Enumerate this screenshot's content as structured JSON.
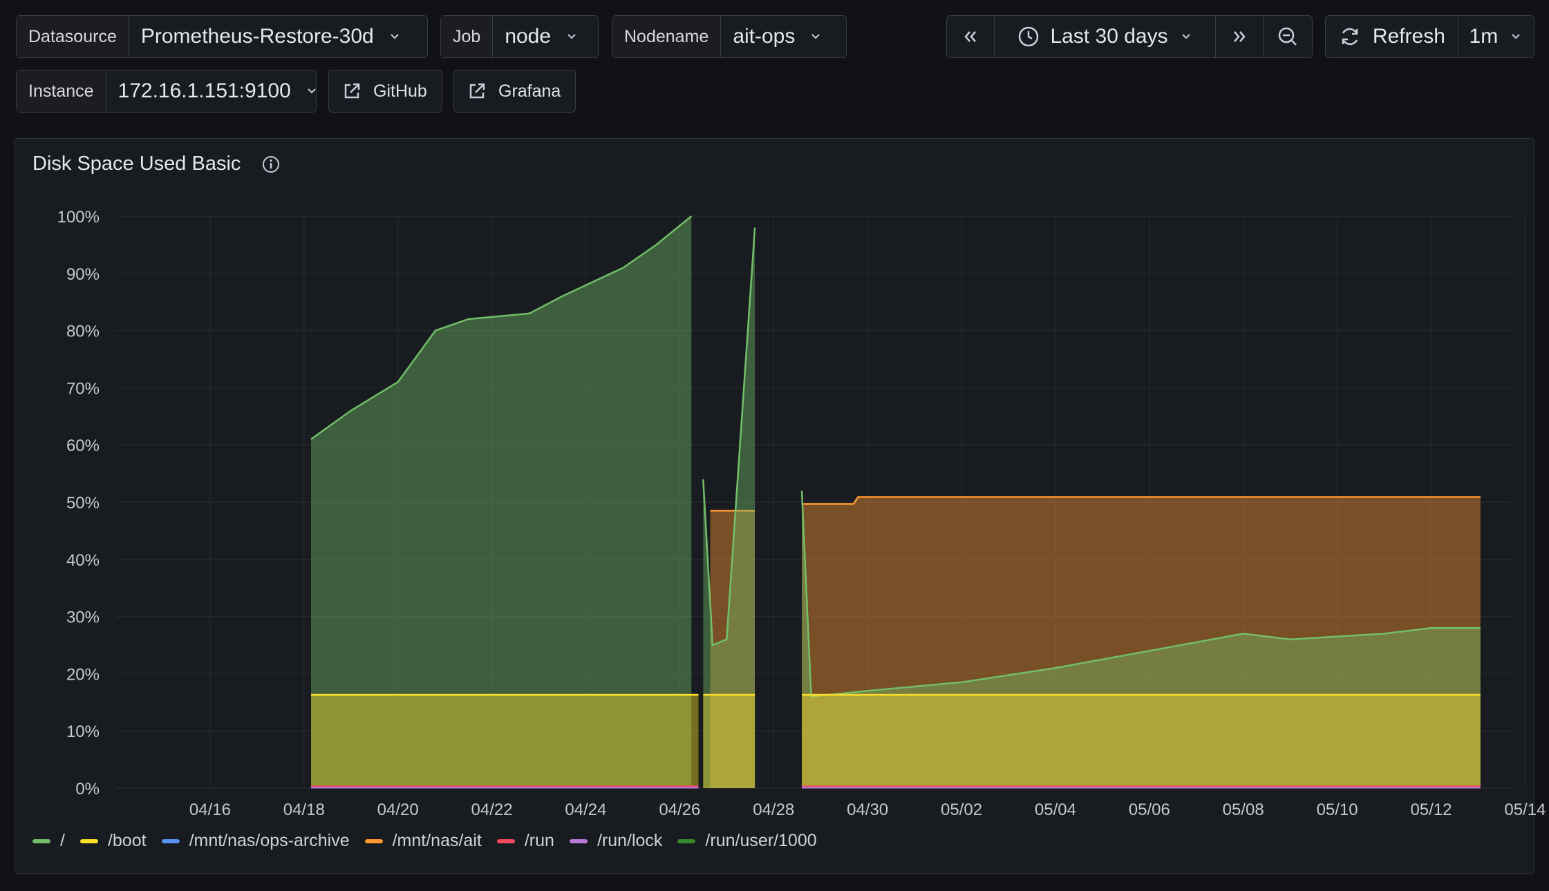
{
  "toolbar": {
    "datasource": {
      "label": "Datasource",
      "value": "Prometheus-Restore-30d"
    },
    "job": {
      "label": "Job",
      "value": "node"
    },
    "nodename": {
      "label": "Nodename",
      "value": "ait-ops"
    },
    "instance": {
      "label": "Instance",
      "value": "172.16.1.151:9100"
    },
    "github_label": "GitHub",
    "grafana_label": "Grafana",
    "time_range": "Last 30 days",
    "refresh_label": "Refresh",
    "refresh_interval": "1m"
  },
  "panel": {
    "title": "Disk Space Used Basic"
  },
  "chart_data": {
    "type": "area",
    "title": "Disk Space Used Basic",
    "x_ticks": [
      "04/16",
      "04/18",
      "04/20",
      "04/22",
      "04/24",
      "04/26",
      "04/28",
      "04/30",
      "05/02",
      "05/04",
      "05/06",
      "05/08",
      "05/10",
      "05/12",
      "05/14"
    ],
    "y_ticks": [
      "0%",
      "10%",
      "20%",
      "30%",
      "40%",
      "50%",
      "60%",
      "70%",
      "80%",
      "90%",
      "100%"
    ],
    "ylim": [
      0,
      100
    ],
    "xlim_days": [
      0,
      29.7
    ],
    "legend_position": "bottom-left",
    "grid": true,
    "series": [
      {
        "name": "/",
        "color": "#73bf69",
        "segments": [
          [
            [
              4.15,
              61
            ],
            [
              5,
              66
            ],
            [
              6,
              71
            ],
            [
              6.8,
              80
            ],
            [
              7.5,
              82
            ],
            [
              8.8,
              83
            ],
            [
              9.5,
              86
            ],
            [
              10.8,
              91
            ],
            [
              11.5,
              95
            ],
            [
              12.25,
              100
            ]
          ],
          [
            [
              12.5,
              54
            ],
            [
              12.7,
              25
            ],
            [
              13,
              26
            ],
            [
              13.6,
              98
            ]
          ],
          [
            [
              14.6,
              52
            ],
            [
              14.8,
              16
            ],
            [
              16,
              17
            ],
            [
              18,
              18.5
            ],
            [
              20,
              21
            ],
            [
              22,
              24
            ],
            [
              24,
              27
            ],
            [
              25,
              26
            ],
            [
              27,
              27
            ],
            [
              28,
              28
            ],
            [
              29.05,
              28
            ]
          ]
        ]
      },
      {
        "name": "/boot",
        "color": "#fade2a",
        "segments": [
          [
            [
              4.15,
              16.3
            ],
            [
              12.4,
              16.3
            ]
          ],
          [
            [
              12.5,
              16.3
            ],
            [
              13.6,
              16.3
            ]
          ],
          [
            [
              14.6,
              16.3
            ],
            [
              29.05,
              16.3
            ]
          ]
        ]
      },
      {
        "name": "/mnt/nas/ops-archive",
        "color": "#5794f2",
        "segments": []
      },
      {
        "name": "/mnt/nas/ait",
        "color": "#ff9830",
        "segments": [
          [
            [
              12.65,
              48.5
            ],
            [
              13.6,
              48.5
            ]
          ],
          [
            [
              14.6,
              49.7
            ],
            [
              15.7,
              49.7
            ],
            [
              15.8,
              50.9
            ],
            [
              29.05,
              50.9
            ]
          ]
        ]
      },
      {
        "name": "/run",
        "color": "#f2495c",
        "segments": [
          [
            [
              4.15,
              0.3
            ],
            [
              12.4,
              0.3
            ]
          ],
          [
            [
              14.6,
              0.3
            ],
            [
              29.05,
              0.3
            ]
          ]
        ]
      },
      {
        "name": "/run/lock",
        "color": "#b877d9",
        "segments": [
          [
            [
              4.15,
              0.1
            ],
            [
              12.4,
              0.1
            ]
          ],
          [
            [
              14.6,
              0.1
            ],
            [
              29.05,
              0.1
            ]
          ]
        ]
      },
      {
        "name": "/run/user/1000",
        "color": "#37872d",
        "segments": []
      }
    ]
  }
}
